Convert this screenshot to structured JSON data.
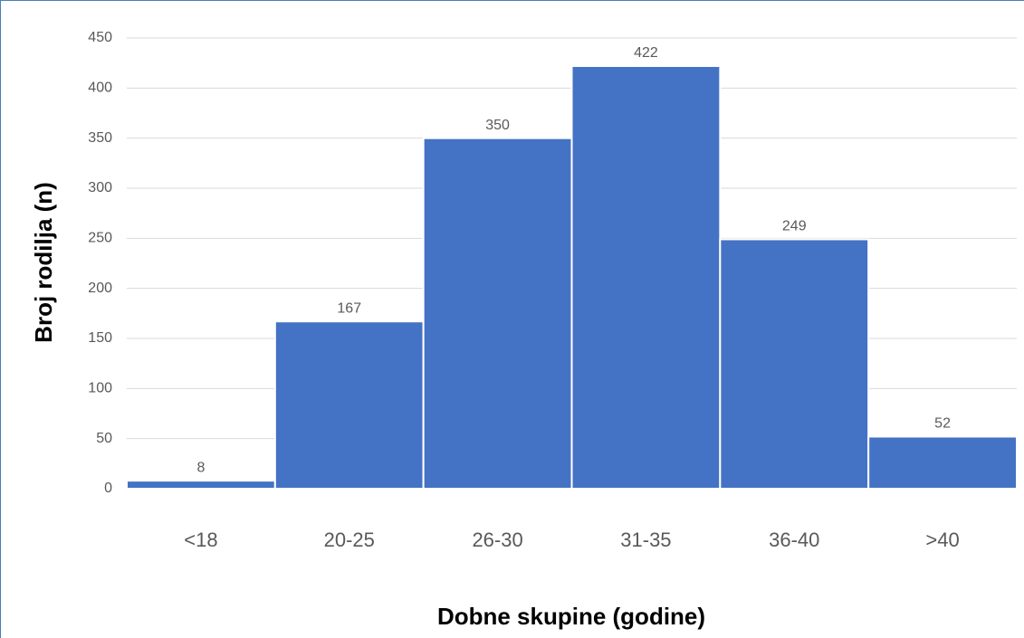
{
  "chart_data": {
    "type": "bar",
    "categories": [
      "<18",
      "20-25",
      "26-30",
      "31-35",
      "36-40",
      ">40"
    ],
    "values": [
      8,
      167,
      350,
      422,
      249,
      52
    ],
    "color": "#4472c4",
    "x_label": "Dobne skupine (godine)",
    "y_label": "Broj rodilja (n)",
    "ylim": [
      0,
      450
    ],
    "yticks": [
      0,
      50,
      100,
      150,
      200,
      250,
      300,
      350,
      400,
      450
    ],
    "grid": true
  }
}
